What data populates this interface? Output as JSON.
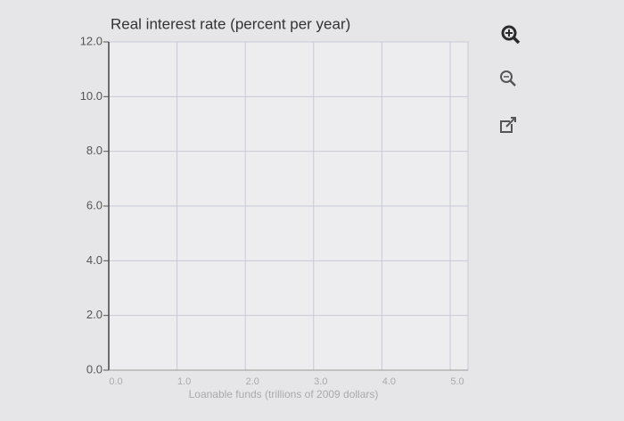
{
  "chart_data": {
    "type": "line",
    "title": "Real interest rate (percent per year)",
    "x_label": "Loanable funds (trillions of 2009 dollars)",
    "series": [],
    "xlim": [
      0,
      5
    ],
    "xticks": [
      {
        "value": 0,
        "label": "0.0"
      },
      {
        "value": 1,
        "label": "1.0"
      },
      {
        "value": 2,
        "label": "2.0"
      },
      {
        "value": 3,
        "label": "3.0"
      },
      {
        "value": 4,
        "label": "4.0"
      },
      {
        "value": 5,
        "label": "5.0"
      }
    ],
    "ylim": [
      0,
      12
    ],
    "yticks": [
      {
        "value": 0,
        "label": "0.0"
      },
      {
        "value": 2,
        "label": "2.0"
      },
      {
        "value": 4,
        "label": "4.0"
      },
      {
        "value": 6,
        "label": "6.0"
      },
      {
        "value": 8,
        "label": "8.0"
      },
      {
        "value": 10,
        "label": "10.0"
      },
      {
        "value": 12,
        "label": "12.0"
      }
    ],
    "grid": true
  }
}
